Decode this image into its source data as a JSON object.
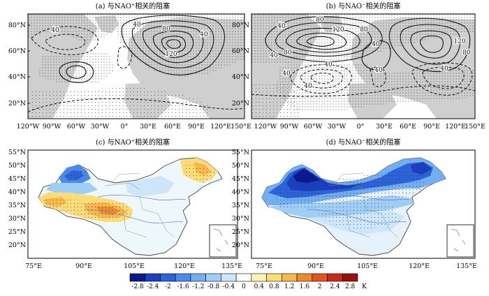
{
  "panels": [
    {
      "id": "a",
      "title": "(a) 与NAO⁺相关的阻塞",
      "lat_labels": [
        "80°N",
        "60°N",
        "40°N",
        "20°N"
      ],
      "lon_labels": [
        "120°W",
        "90°W",
        "60°W",
        "30°W",
        "0°",
        "30°E",
        "60°E",
        "90°E",
        "120°E",
        "150°E"
      ],
      "contour_labels": [
        "40",
        "40",
        "80",
        "120",
        "40"
      ]
    },
    {
      "id": "b",
      "title": "(b) 与NAO⁻相关的阻塞",
      "lat_labels": [
        "80°N",
        "60°N",
        "40°N",
        "20°N"
      ],
      "lon_labels": [
        "120°W",
        "90°W",
        "60°W",
        "30°W",
        "0°",
        "30°E",
        "60°E",
        "90°E",
        "120°E",
        "150°E"
      ],
      "contour_labels": [
        "40",
        "80",
        "120",
        "80",
        "40",
        "80",
        "40",
        "120",
        "80",
        "40",
        "40",
        "40",
        "40",
        "40"
      ]
    },
    {
      "id": "c",
      "title": "(c) 与NAO⁺相关的阻塞",
      "lat_labels": [
        "55°N",
        "50°N",
        "45°N",
        "40°N",
        "35°N",
        "30°N",
        "25°N",
        "20°N"
      ],
      "lon_labels": [
        "75°E",
        "90°E",
        "105°E",
        "120°E",
        "135°E"
      ]
    },
    {
      "id": "d",
      "title": "(d) 与NAO⁻相关的阻塞",
      "lat_labels": [
        "55°N",
        "50°N",
        "45°N",
        "40°N",
        "35°N",
        "30°N",
        "25°N",
        "20°N"
      ],
      "lon_labels": [
        "75°E",
        "90°E",
        "105°E",
        "120°E",
        "135°E"
      ]
    }
  ],
  "colorbar": {
    "ticks": [
      "-2.8",
      "-2.4",
      "-2",
      "-1.6",
      "-1.2",
      "-0.8",
      "-0.4",
      "0",
      "0.4",
      "0.8",
      "1.2",
      "1.6",
      "2",
      "2.4",
      "2.8"
    ],
    "unit": "K",
    "colors": [
      "#0a1a8c",
      "#1a3fbf",
      "#2d63d9",
      "#4a8ae8",
      "#73aef0",
      "#9fcdf5",
      "#cde6fa",
      "#ffffff",
      "#fdf2b8",
      "#fbdc78",
      "#f6b84a",
      "#ee8a2e",
      "#e0561f",
      "#c82a17",
      "#9a1010"
    ]
  }
}
